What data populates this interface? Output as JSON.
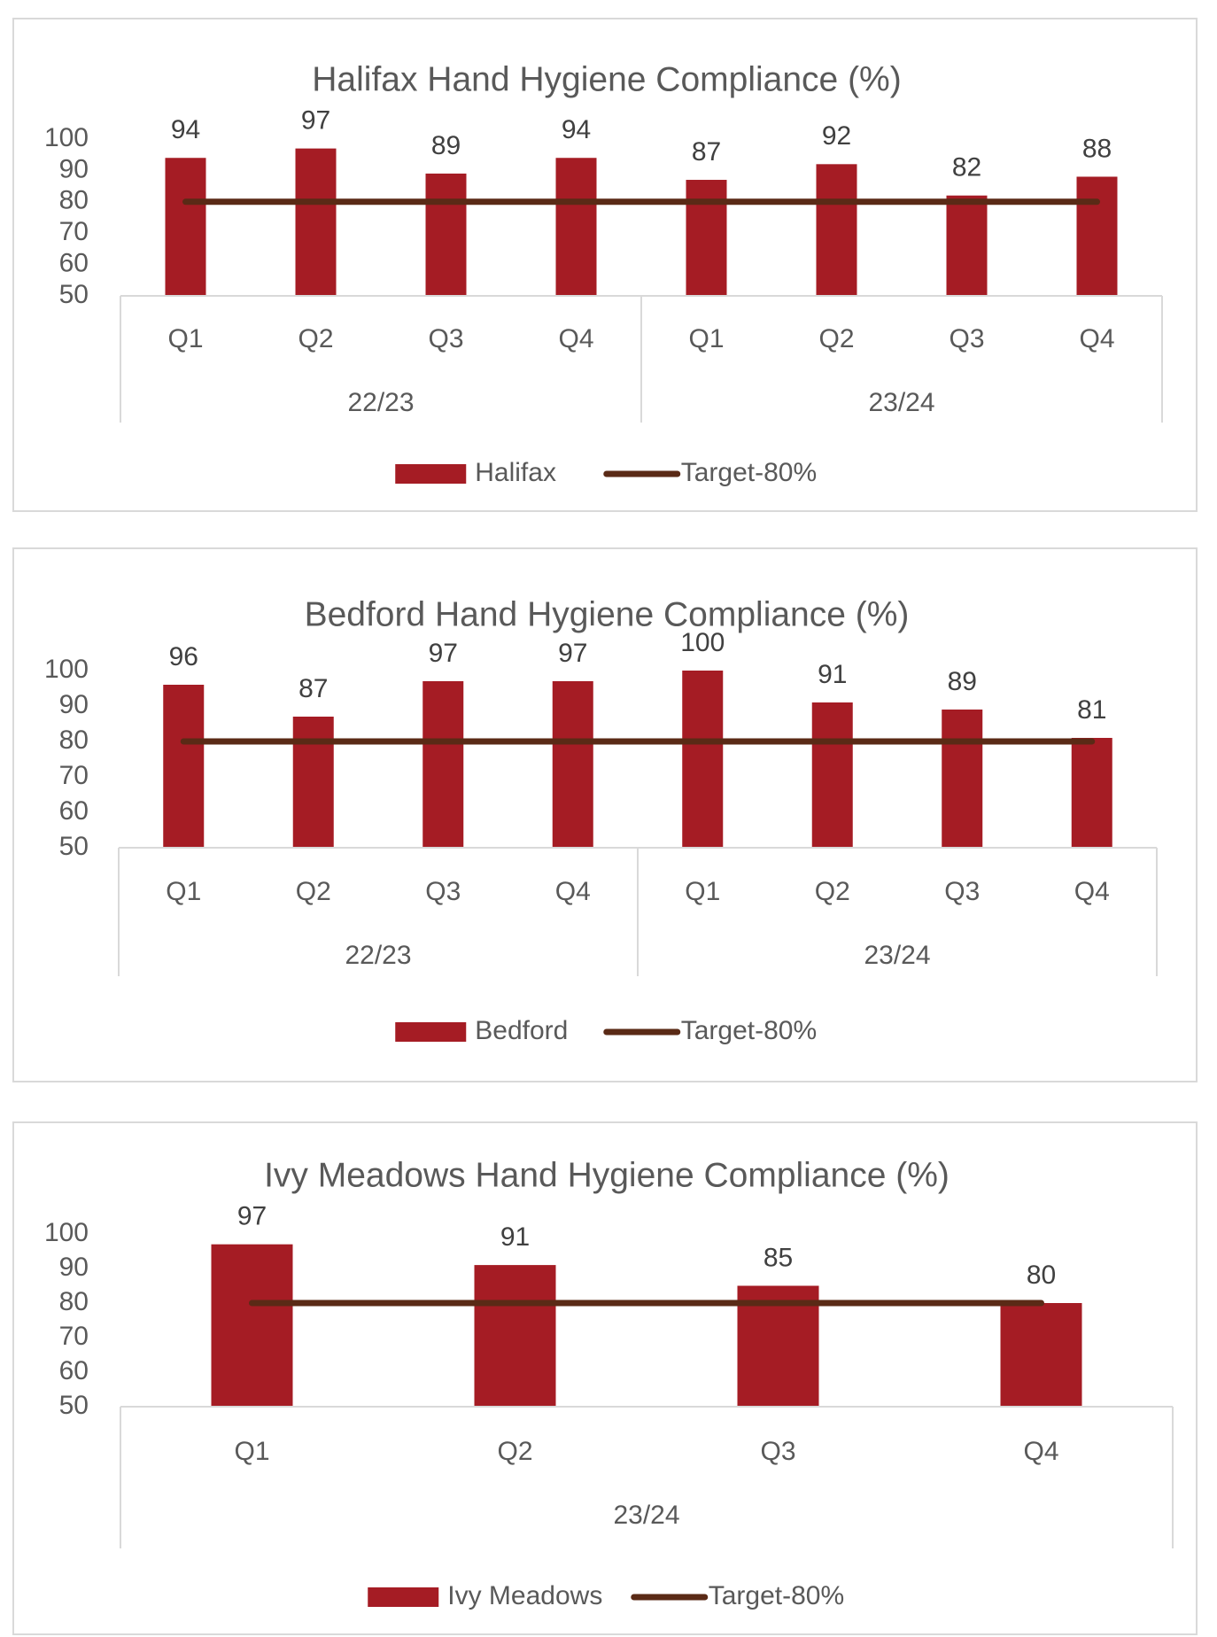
{
  "chart_data": [
    {
      "type": "bar",
      "title": "Halifax Hand Hygiene Compliance (%)",
      "categories": [
        "Q1",
        "Q2",
        "Q3",
        "Q4",
        "Q1",
        "Q2",
        "Q3",
        "Q4"
      ],
      "groups": [
        {
          "label": "22/23",
          "count": 4
        },
        {
          "label": "23/24",
          "count": 4
        }
      ],
      "series": [
        {
          "name": "Halifax",
          "kind": "bar",
          "values": [
            94,
            97,
            89,
            94,
            87,
            92,
            82,
            88
          ]
        },
        {
          "name": "Target-80%",
          "kind": "line",
          "values": [
            80,
            80,
            80,
            80,
            80,
            80,
            80,
            80
          ]
        }
      ],
      "yticks": [
        50,
        60,
        70,
        80,
        90,
        100
      ],
      "ylim": [
        50,
        100
      ],
      "legend": [
        "Halifax",
        "Target-80%"
      ],
      "colors": {
        "bar": "#a51c24",
        "line": "#5a2a16"
      }
    },
    {
      "type": "bar",
      "title": "Bedford Hand Hygiene Compliance (%)",
      "categories": [
        "Q1",
        "Q2",
        "Q3",
        "Q4",
        "Q1",
        "Q2",
        "Q3",
        "Q4"
      ],
      "groups": [
        {
          "label": "22/23",
          "count": 4
        },
        {
          "label": "23/24",
          "count": 4
        }
      ],
      "series": [
        {
          "name": "Bedford",
          "kind": "bar",
          "values": [
            96,
            87,
            97,
            97,
            100,
            91,
            89,
            81
          ]
        },
        {
          "name": "Target-80%",
          "kind": "line",
          "values": [
            80,
            80,
            80,
            80,
            80,
            80,
            80,
            80
          ]
        }
      ],
      "yticks": [
        50,
        60,
        70,
        80,
        90,
        100
      ],
      "ylim": [
        50,
        100
      ],
      "legend": [
        "Bedford",
        "Target-80%"
      ],
      "colors": {
        "bar": "#a51c24",
        "line": "#5a2a16"
      }
    },
    {
      "type": "bar",
      "title": "Ivy Meadows Hand Hygiene Compliance (%)",
      "categories": [
        "Q1",
        "Q2",
        "Q3",
        "Q4"
      ],
      "groups": [
        {
          "label": "23/24",
          "count": 4
        }
      ],
      "series": [
        {
          "name": "Ivy Meadows",
          "kind": "bar",
          "values": [
            97,
            91,
            85,
            80
          ]
        },
        {
          "name": "Target-80%",
          "kind": "line",
          "values": [
            80,
            80,
            80,
            80
          ]
        }
      ],
      "yticks": [
        50,
        60,
        70,
        80,
        90,
        100
      ],
      "ylim": [
        50,
        100
      ],
      "legend": [
        "Ivy Meadows",
        "Target-80%"
      ],
      "colors": {
        "bar": "#a51c24",
        "line": "#5a2a16"
      }
    }
  ]
}
